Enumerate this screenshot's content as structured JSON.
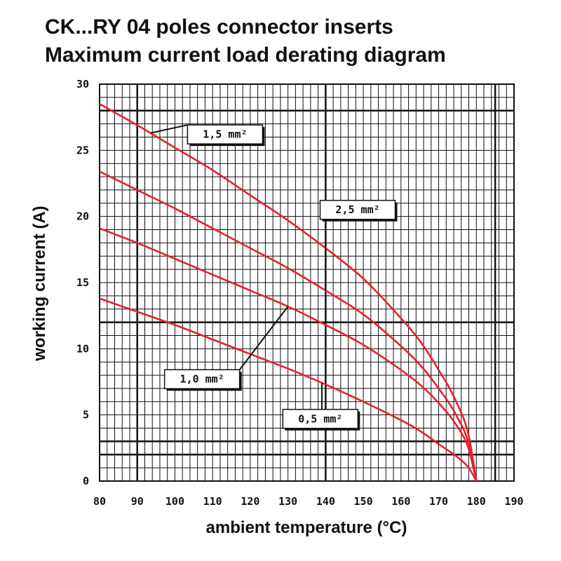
{
  "chart_data": {
    "type": "line",
    "title": "CK...RY 04 poles connector inserts",
    "subtitle": "Maximum current load derating diagram",
    "xlabel": "ambient temperature (°C)",
    "ylabel": "working current (A)",
    "xlim": [
      80,
      190
    ],
    "ylim": [
      0,
      30
    ],
    "x_ticks": [
      80,
      90,
      100,
      110,
      120,
      130,
      140,
      150,
      160,
      170,
      180,
      190
    ],
    "y_ticks": [
      0,
      5,
      10,
      15,
      20,
      25,
      30
    ],
    "grid": true,
    "series": [
      {
        "name": "1,5 mm²",
        "color": "#e8202a",
        "x": [
          80,
          90,
          100,
          110,
          120,
          130,
          140,
          150,
          160,
          165,
          170,
          175,
          178,
          180
        ],
        "y": [
          28.5,
          26.9,
          25.2,
          23.5,
          21.6,
          19.7,
          17.6,
          15.3,
          12.3,
          10.6,
          8.4,
          5.8,
          3.4,
          0
        ]
      },
      {
        "name": "2,5 mm²",
        "color": "#e8202a",
        "x": [
          80,
          90,
          100,
          110,
          120,
          130,
          140,
          150,
          160,
          165,
          170,
          175,
          178,
          180
        ],
        "y": [
          23.4,
          22.0,
          20.6,
          19.1,
          17.6,
          16.1,
          14.4,
          12.6,
          10.2,
          8.8,
          7.0,
          4.8,
          2.8,
          0
        ]
      },
      {
        "name": "1,0 mm²",
        "color": "#e8202a",
        "x": [
          80,
          90,
          100,
          110,
          120,
          130,
          140,
          150,
          160,
          165,
          170,
          175,
          178,
          180
        ],
        "y": [
          19.1,
          18.0,
          16.8,
          15.6,
          14.4,
          13.2,
          11.8,
          10.3,
          8.4,
          7.3,
          5.9,
          4.1,
          2.4,
          0
        ]
      },
      {
        "name": "0,5 mm²",
        "color": "#e8202a",
        "x": [
          80,
          90,
          100,
          110,
          120,
          130,
          140,
          150,
          160,
          165,
          170,
          175,
          178,
          180
        ],
        "y": [
          13.8,
          12.8,
          11.8,
          10.7,
          9.6,
          8.5,
          7.3,
          6.0,
          4.6,
          3.8,
          2.8,
          1.8,
          1.0,
          0
        ]
      }
    ],
    "annotations": [
      {
        "series": 0,
        "text": "1,5 mm²",
        "at_x": 93.5,
        "box_x": 113.3,
        "box_y": 26.2
      },
      {
        "series": 1,
        "text": "2,5 mm²",
        "at_x": 140,
        "box_x": 148.5,
        "box_y": 20.5
      },
      {
        "series": 2,
        "text": "1,0 mm²",
        "at_x": 130,
        "box_x": 107.2,
        "box_y": 7.7
      },
      {
        "series": 3,
        "text": "0,5 mm²",
        "at_x": 139,
        "box_x": 138.6,
        "box_y": 4.7
      }
    ]
  }
}
